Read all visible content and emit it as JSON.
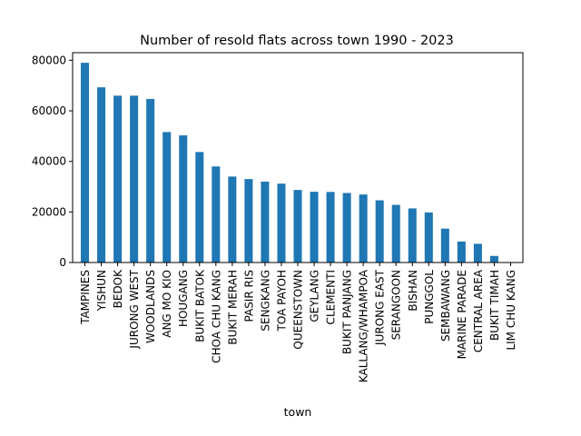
{
  "chart_data": {
    "type": "bar",
    "title": "Number of resold flats across town 1990 - 2023",
    "xlabel": "town",
    "ylabel": "",
    "ylim": [
      0,
      83000
    ],
    "yticks": [
      0,
      20000,
      40000,
      60000,
      80000
    ],
    "ytick_labels": [
      "0",
      "20000",
      "40000",
      "60000",
      "80000"
    ],
    "grid": false,
    "legend": "none",
    "bar_color": "#1f77b4",
    "categories": [
      "TAMPINES",
      "YISHUN",
      "BEDOK",
      "JURONG WEST",
      "WOODLANDS",
      "ANG MO KIO",
      "HOUGANG",
      "BUKIT BATOK",
      "CHOA CHU KANG",
      "BUKIT MERAH",
      "PASIR RIS",
      "SENGKANG",
      "TOA PAYOH",
      "QUEENSTOWN",
      "GEYLANG",
      "CLEMENTI",
      "BUKIT PANJANG",
      "KALLANG/WHAMPOA",
      "JURONG EAST",
      "SERANGOON",
      "BISHAN",
      "PUNGGOL",
      "SEMBAWANG",
      "MARINE PARADE",
      "CENTRAL AREA",
      "BUKIT TIMAH",
      "LIM CHU KANG"
    ],
    "values": [
      79000,
      69300,
      66000,
      66000,
      64700,
      51600,
      50300,
      43700,
      38000,
      34000,
      33000,
      32000,
      31200,
      28700,
      28000,
      27900,
      27500,
      26900,
      24600,
      22800,
      21400,
      19800,
      13400,
      8300,
      7400,
      2600,
      100
    ]
  }
}
